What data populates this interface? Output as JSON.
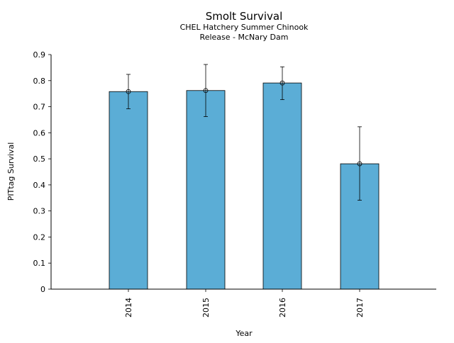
{
  "chart_data": {
    "type": "bar",
    "title": "Smolt Survival",
    "subtitle_lines": [
      "CHEL Hatchery Summer Chinook",
      "Release - McNary Dam"
    ],
    "xlabel": "Year",
    "ylabel": "PITtag Survival",
    "categories": [
      "2014",
      "2015",
      "2016",
      "2017"
    ],
    "values": [
      0.758,
      0.762,
      0.791,
      0.481
    ],
    "error_low": [
      0.692,
      0.662,
      0.727,
      0.341
    ],
    "error_high": [
      0.824,
      0.862,
      0.853,
      0.623
    ],
    "ylim": [
      0,
      0.9
    ],
    "yticks": [
      "0",
      "0.1",
      "0.2",
      "0.3",
      "0.4",
      "0.5",
      "0.6",
      "0.7",
      "0.8",
      "0.9"
    ],
    "grid": false,
    "bar_color": "#5badd6"
  }
}
